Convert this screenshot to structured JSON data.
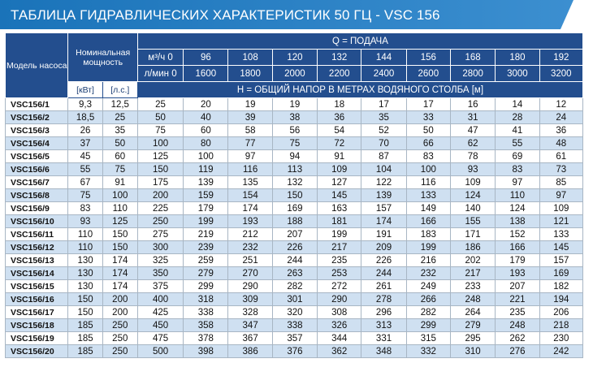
{
  "title": "ТАБЛИЦА ГИДРАВЛИЧЕСКИХ ХАРАКТЕРИСТИК 50 ГЦ - VSC 156",
  "colors": {
    "header_blue": "#234e8e",
    "banner_blue": "#1a73b9",
    "stripe": "#cfe0f1"
  },
  "header": {
    "model": "Модель насоса",
    "power": "Номинальная мощность",
    "flow": "Q = ПОДАЧА",
    "flow_unit_m3h": "м³/ч 0",
    "flow_unit_lmin": "л/мин 0",
    "flow_m3h": [
      "96",
      "108",
      "120",
      "132",
      "144",
      "156",
      "168",
      "180",
      "192"
    ],
    "flow_lmin": [
      "1600",
      "1800",
      "2000",
      "2200",
      "2400",
      "2600",
      "2800",
      "3000",
      "3200"
    ],
    "kw": "[кВт]",
    "hp": "[л.с.]",
    "head": "H = ОБЩИЙ НАПОР В МЕТРАХ ВОДЯНОГО СТОЛБА [м]"
  },
  "rows": [
    {
      "model": "VSC156/1",
      "kw": "9,3",
      "hp": "12,5",
      "zero": "25",
      "heads": [
        "20",
        "19",
        "19",
        "18",
        "17",
        "17",
        "16",
        "14",
        "12"
      ]
    },
    {
      "model": "VSC156/2",
      "kw": "18,5",
      "hp": "25",
      "zero": "50",
      "heads": [
        "40",
        "39",
        "38",
        "36",
        "35",
        "33",
        "31",
        "28",
        "24"
      ]
    },
    {
      "model": "VSC156/3",
      "kw": "26",
      "hp": "35",
      "zero": "75",
      "heads": [
        "60",
        "58",
        "56",
        "54",
        "52",
        "50",
        "47",
        "41",
        "36"
      ]
    },
    {
      "model": "VSC156/4",
      "kw": "37",
      "hp": "50",
      "zero": "100",
      "heads": [
        "80",
        "77",
        "75",
        "72",
        "70",
        "66",
        "62",
        "55",
        "48"
      ]
    },
    {
      "model": "VSC156/5",
      "kw": "45",
      "hp": "60",
      "zero": "125",
      "heads": [
        "100",
        "97",
        "94",
        "91",
        "87",
        "83",
        "78",
        "69",
        "61"
      ]
    },
    {
      "model": "VSC156/6",
      "kw": "55",
      "hp": "75",
      "zero": "150",
      "heads": [
        "119",
        "116",
        "113",
        "109",
        "104",
        "100",
        "93",
        "83",
        "73"
      ]
    },
    {
      "model": "VSC156/7",
      "kw": "67",
      "hp": "91",
      "zero": "175",
      "heads": [
        "139",
        "135",
        "132",
        "127",
        "122",
        "116",
        "109",
        "97",
        "85"
      ]
    },
    {
      "model": "VSC156/8",
      "kw": "75",
      "hp": "100",
      "zero": "200",
      "heads": [
        "159",
        "154",
        "150",
        "145",
        "139",
        "133",
        "124",
        "110",
        "97"
      ]
    },
    {
      "model": "VSC156/9",
      "kw": "83",
      "hp": "110",
      "zero": "225",
      "heads": [
        "179",
        "174",
        "169",
        "163",
        "157",
        "149",
        "140",
        "124",
        "109"
      ]
    },
    {
      "model": "VSC156/10",
      "kw": "93",
      "hp": "125",
      "zero": "250",
      "heads": [
        "199",
        "193",
        "188",
        "181",
        "174",
        "166",
        "155",
        "138",
        "121"
      ]
    },
    {
      "model": "VSC156/11",
      "kw": "110",
      "hp": "150",
      "zero": "275",
      "heads": [
        "219",
        "212",
        "207",
        "199",
        "191",
        "183",
        "171",
        "152",
        "133"
      ]
    },
    {
      "model": "VSC156/12",
      "kw": "110",
      "hp": "150",
      "zero": "300",
      "heads": [
        "239",
        "232",
        "226",
        "217",
        "209",
        "199",
        "186",
        "166",
        "145"
      ]
    },
    {
      "model": "VSC156/13",
      "kw": "130",
      "hp": "174",
      "zero": "325",
      "heads": [
        "259",
        "251",
        "244",
        "235",
        "226",
        "216",
        "202",
        "179",
        "157"
      ]
    },
    {
      "model": "VSC156/14",
      "kw": "130",
      "hp": "174",
      "zero": "350",
      "heads": [
        "279",
        "270",
        "263",
        "253",
        "244",
        "232",
        "217",
        "193",
        "169"
      ]
    },
    {
      "model": "VSC156/15",
      "kw": "130",
      "hp": "174",
      "zero": "375",
      "heads": [
        "299",
        "290",
        "282",
        "272",
        "261",
        "249",
        "233",
        "207",
        "182"
      ]
    },
    {
      "model": "VSC156/16",
      "kw": "150",
      "hp": "200",
      "zero": "400",
      "heads": [
        "318",
        "309",
        "301",
        "290",
        "278",
        "266",
        "248",
        "221",
        "194"
      ]
    },
    {
      "model": "VSC156/17",
      "kw": "150",
      "hp": "200",
      "zero": "425",
      "heads": [
        "338",
        "328",
        "320",
        "308",
        "296",
        "282",
        "264",
        "235",
        "206"
      ]
    },
    {
      "model": "VSC156/18",
      "kw": "185",
      "hp": "250",
      "zero": "450",
      "heads": [
        "358",
        "347",
        "338",
        "326",
        "313",
        "299",
        "279",
        "248",
        "218"
      ]
    },
    {
      "model": "VSC156/19",
      "kw": "185",
      "hp": "250",
      "zero": "475",
      "heads": [
        "378",
        "367",
        "357",
        "344",
        "331",
        "315",
        "295",
        "262",
        "230"
      ]
    },
    {
      "model": "VSC156/20",
      "kw": "185",
      "hp": "250",
      "zero": "500",
      "heads": [
        "398",
        "386",
        "376",
        "362",
        "348",
        "332",
        "310",
        "276",
        "242"
      ]
    }
  ]
}
